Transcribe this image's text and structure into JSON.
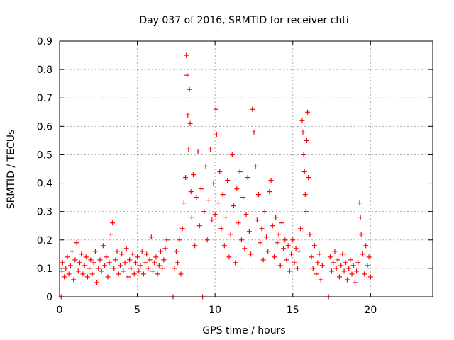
{
  "chart_data": {
    "type": "scatter",
    "title": "Day 037 of 2016, SRMTID for receiver chti",
    "xlabel": "GPS time / hours",
    "ylabel": "SRMTID / TECUs",
    "xlim": [
      0,
      24
    ],
    "ylim": [
      0,
      0.9
    ],
    "x_ticks": [
      0,
      5,
      10,
      15,
      20
    ],
    "y_ticks": [
      0,
      0.1,
      0.2,
      0.3,
      0.4,
      0.5,
      0.6,
      0.7,
      0.8,
      0.9
    ],
    "x_tick_labels": [
      "0",
      "5",
      "10",
      "15",
      "20"
    ],
    "y_tick_labels": [
      "0",
      "0.1",
      "0.2",
      "0.3",
      "0.4",
      "0.5",
      "0.6",
      "0.7",
      "0.8",
      "0.9"
    ],
    "grid": true,
    "marker": "+",
    "color": "#ff0000",
    "series": [
      {
        "name": "SRMTID",
        "points": [
          [
            0.1,
            0.0
          ],
          [
            0.15,
            0.09
          ],
          [
            0.2,
            0.12
          ],
          [
            0.3,
            0.07
          ],
          [
            0.4,
            0.1
          ],
          [
            0.5,
            0.14
          ],
          [
            0.6,
            0.08
          ],
          [
            0.7,
            0.11
          ],
          [
            0.8,
            0.16
          ],
          [
            0.9,
            0.06
          ],
          [
            1.0,
            0.13
          ],
          [
            1.1,
            0.19
          ],
          [
            1.2,
            0.09
          ],
          [
            1.3,
            0.12
          ],
          [
            1.4,
            0.15
          ],
          [
            1.5,
            0.08
          ],
          [
            1.6,
            0.11
          ],
          [
            1.7,
            0.14
          ],
          [
            1.8,
            0.07
          ],
          [
            1.9,
            0.1
          ],
          [
            2.0,
            0.13
          ],
          [
            2.1,
            0.08
          ],
          [
            2.2,
            0.12
          ],
          [
            2.3,
            0.16
          ],
          [
            2.4,
            0.05
          ],
          [
            2.5,
            0.1
          ],
          [
            2.6,
            0.13
          ],
          [
            2.7,
            0.09
          ],
          [
            2.8,
            0.18
          ],
          [
            2.9,
            0.11
          ],
          [
            3.0,
            0.14
          ],
          [
            3.1,
            0.07
          ],
          [
            3.2,
            0.12
          ],
          [
            3.3,
            0.22
          ],
          [
            3.4,
            0.26
          ],
          [
            3.5,
            0.1
          ],
          [
            3.6,
            0.13
          ],
          [
            3.7,
            0.16
          ],
          [
            3.8,
            0.08
          ],
          [
            3.9,
            0.11
          ],
          [
            4.0,
            0.15
          ],
          [
            4.1,
            0.09
          ],
          [
            4.2,
            0.12
          ],
          [
            4.3,
            0.17
          ],
          [
            4.4,
            0.07
          ],
          [
            4.5,
            0.13
          ],
          [
            4.6,
            0.1
          ],
          [
            4.7,
            0.15
          ],
          [
            4.8,
            0.08
          ],
          [
            4.9,
            0.12
          ],
          [
            5.0,
            0.14
          ],
          [
            5.1,
            0.09
          ],
          [
            5.2,
            0.11
          ],
          [
            5.3,
            0.16
          ],
          [
            5.4,
            0.08
          ],
          [
            5.5,
            0.12
          ],
          [
            5.6,
            0.15
          ],
          [
            5.7,
            0.1
          ],
          [
            5.8,
            0.13
          ],
          [
            5.9,
            0.21
          ],
          [
            6.0,
            0.09
          ],
          [
            6.1,
            0.12
          ],
          [
            6.2,
            0.14
          ],
          [
            6.3,
            0.08
          ],
          [
            6.4,
            0.11
          ],
          [
            6.5,
            0.16
          ],
          [
            6.6,
            0.1
          ],
          [
            6.7,
            0.13
          ],
          [
            6.8,
            0.17
          ],
          [
            6.9,
            0.2
          ],
          [
            7.3,
            0.0
          ],
          [
            7.4,
            0.1
          ],
          [
            7.5,
            0.16
          ],
          [
            7.6,
            0.12
          ],
          [
            7.7,
            0.2
          ],
          [
            7.8,
            0.08
          ],
          [
            7.9,
            0.24
          ],
          [
            8.0,
            0.33
          ],
          [
            8.1,
            0.42
          ],
          [
            8.15,
            0.85
          ],
          [
            8.2,
            0.78
          ],
          [
            8.25,
            0.64
          ],
          [
            8.3,
            0.52
          ],
          [
            8.35,
            0.73
          ],
          [
            8.4,
            0.61
          ],
          [
            8.45,
            0.37
          ],
          [
            8.5,
            0.28
          ],
          [
            8.6,
            0.43
          ],
          [
            8.7,
            0.18
          ],
          [
            8.8,
            0.35
          ],
          [
            8.9,
            0.51
          ],
          [
            9.0,
            0.25
          ],
          [
            9.1,
            0.38
          ],
          [
            9.2,
            0.0
          ],
          [
            9.3,
            0.3
          ],
          [
            9.4,
            0.46
          ],
          [
            9.5,
            0.2
          ],
          [
            9.6,
            0.34
          ],
          [
            9.7,
            0.52
          ],
          [
            9.8,
            0.27
          ],
          [
            9.9,
            0.4
          ],
          [
            10.0,
            0.29
          ],
          [
            10.05,
            0.66
          ],
          [
            10.1,
            0.57
          ],
          [
            10.2,
            0.33
          ],
          [
            10.3,
            0.44
          ],
          [
            10.4,
            0.24
          ],
          [
            10.5,
            0.36
          ],
          [
            10.6,
            0.18
          ],
          [
            10.7,
            0.28
          ],
          [
            10.8,
            0.41
          ],
          [
            10.9,
            0.14
          ],
          [
            11.0,
            0.22
          ],
          [
            11.1,
            0.5
          ],
          [
            11.2,
            0.32
          ],
          [
            11.3,
            0.12
          ],
          [
            11.4,
            0.38
          ],
          [
            11.5,
            0.26
          ],
          [
            11.6,
            0.44
          ],
          [
            11.7,
            0.2
          ],
          [
            11.8,
            0.35
          ],
          [
            11.9,
            0.17
          ],
          [
            12.0,
            0.29
          ],
          [
            12.1,
            0.42
          ],
          [
            12.2,
            0.23
          ],
          [
            12.3,
            0.15
          ],
          [
            12.4,
            0.66
          ],
          [
            12.5,
            0.58
          ],
          [
            12.6,
            0.46
          ],
          [
            12.7,
            0.27
          ],
          [
            12.8,
            0.36
          ],
          [
            12.9,
            0.19
          ],
          [
            13.0,
            0.24
          ],
          [
            13.1,
            0.13
          ],
          [
            13.2,
            0.3
          ],
          [
            13.3,
            0.21
          ],
          [
            13.4,
            0.16
          ],
          [
            13.5,
            0.37
          ],
          [
            13.6,
            0.41
          ],
          [
            13.7,
            0.25
          ],
          [
            13.8,
            0.14
          ],
          [
            13.9,
            0.28
          ],
          [
            14.0,
            0.19
          ],
          [
            14.1,
            0.22
          ],
          [
            14.2,
            0.11
          ],
          [
            14.3,
            0.26
          ],
          [
            14.4,
            0.17
          ],
          [
            14.5,
            0.2
          ],
          [
            14.6,
            0.13
          ],
          [
            14.7,
            0.18
          ],
          [
            14.8,
            0.09
          ],
          [
            14.9,
            0.15
          ],
          [
            15.0,
            0.2
          ],
          [
            15.1,
            0.12
          ],
          [
            15.2,
            0.17
          ],
          [
            15.3,
            0.1
          ],
          [
            15.4,
            0.16
          ],
          [
            15.5,
            0.24
          ],
          [
            15.6,
            0.62
          ],
          [
            15.65,
            0.58
          ],
          [
            15.7,
            0.5
          ],
          [
            15.75,
            0.44
          ],
          [
            15.8,
            0.36
          ],
          [
            15.85,
            0.3
          ],
          [
            15.9,
            0.55
          ],
          [
            15.95,
            0.65
          ],
          [
            16.0,
            0.42
          ],
          [
            16.1,
            0.22
          ],
          [
            16.2,
            0.14
          ],
          [
            16.3,
            0.1
          ],
          [
            16.4,
            0.18
          ],
          [
            16.5,
            0.08
          ],
          [
            16.6,
            0.12
          ],
          [
            16.7,
            0.15
          ],
          [
            16.8,
            0.06
          ],
          [
            16.9,
            0.11
          ],
          [
            17.3,
            0.0
          ],
          [
            17.4,
            0.14
          ],
          [
            17.5,
            0.09
          ],
          [
            17.6,
            0.12
          ],
          [
            17.7,
            0.16
          ],
          [
            17.8,
            0.1
          ],
          [
            17.9,
            0.13
          ],
          [
            18.0,
            0.07
          ],
          [
            18.1,
            0.11
          ],
          [
            18.2,
            0.15
          ],
          [
            18.3,
            0.09
          ],
          [
            18.4,
            0.12
          ],
          [
            18.5,
            0.06
          ],
          [
            18.6,
            0.1
          ],
          [
            18.7,
            0.13
          ],
          [
            18.8,
            0.08
          ],
          [
            18.9,
            0.11
          ],
          [
            19.0,
            0.05
          ],
          [
            19.1,
            0.09
          ],
          [
            19.2,
            0.12
          ],
          [
            19.3,
            0.33
          ],
          [
            19.35,
            0.28
          ],
          [
            19.4,
            0.22
          ],
          [
            19.5,
            0.15
          ],
          [
            19.6,
            0.08
          ],
          [
            19.7,
            0.18
          ],
          [
            19.8,
            0.11
          ],
          [
            19.9,
            0.14
          ],
          [
            20.0,
            0.07
          ]
        ]
      }
    ]
  }
}
